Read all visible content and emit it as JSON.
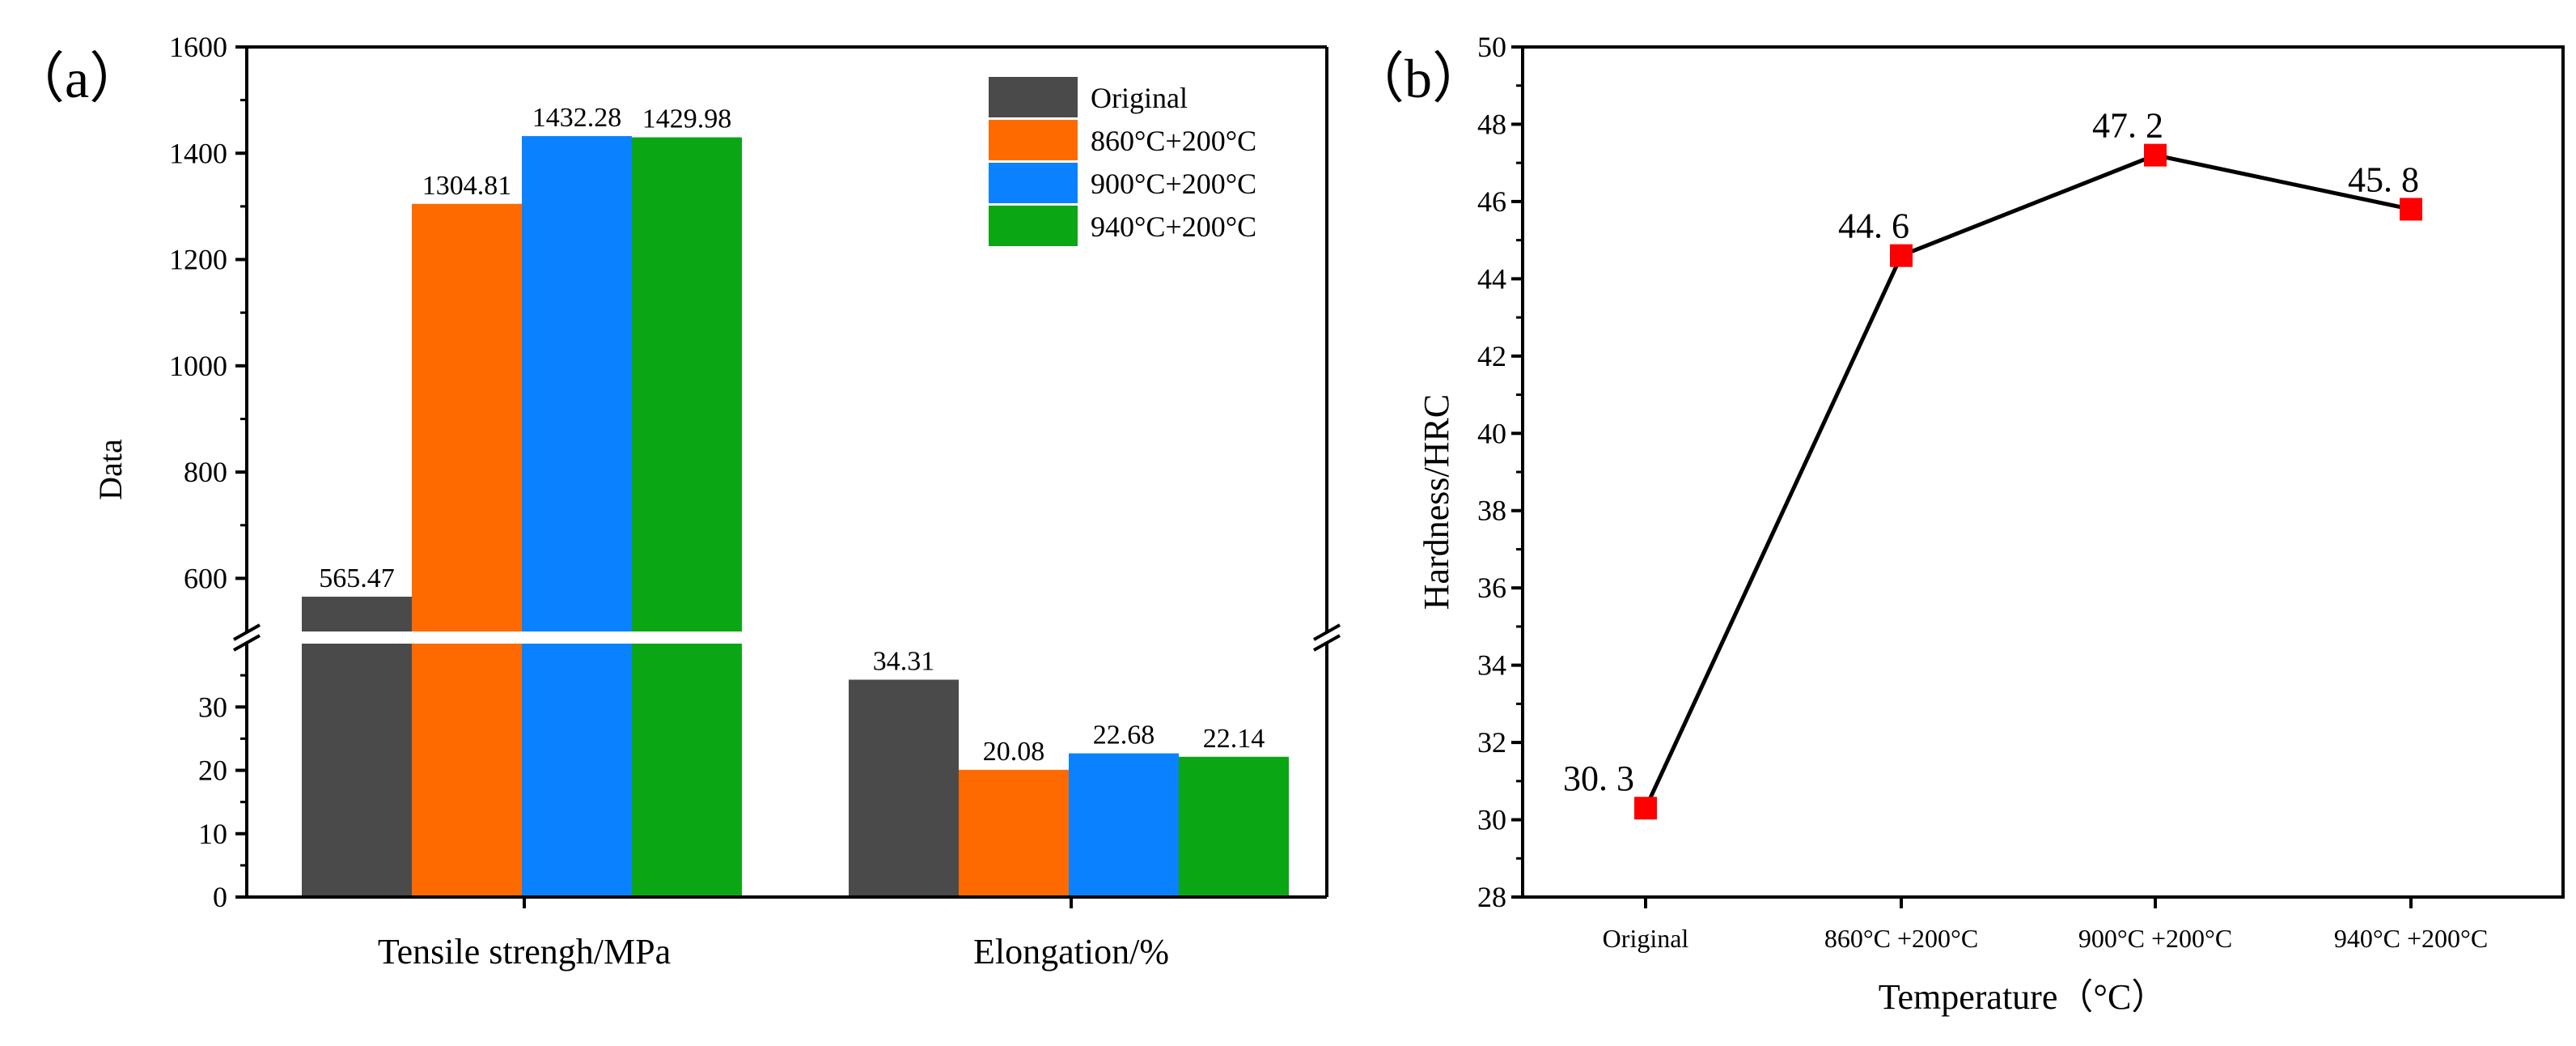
{
  "panels": {
    "a_label": "（a）",
    "b_label": "（b）"
  },
  "chart_data": [
    {
      "type": "bar",
      "panel": "a",
      "ylabel": "Data",
      "categories": [
        "Tensile strengh/MPa",
        "Elongation/%"
      ],
      "series": [
        {
          "name": "Original",
          "color": "#4a4a4a",
          "values": [
            565.47,
            34.31
          ],
          "labels": [
            "565.47",
            "34.31"
          ]
        },
        {
          "name": "860°C+200°C",
          "color": "#ff6a00",
          "values": [
            1304.81,
            20.08
          ],
          "labels": [
            "1304.81",
            "20.08"
          ]
        },
        {
          "name": "900°C+200°C",
          "color": "#0a82ff",
          "values": [
            1432.28,
            22.68
          ],
          "labels": [
            "1432.28",
            "22.68"
          ]
        },
        {
          "name": "940°C+200°C",
          "color": "#0aa614",
          "values": [
            1429.98,
            22.14
          ],
          "labels": [
            "1429.98",
            "22.14"
          ]
        }
      ],
      "axis_break": {
        "lower_range": [
          0,
          40
        ],
        "upper_range": [
          500,
          1600
        ]
      },
      "upper_ticks": [
        "600",
        "800",
        "1000",
        "1200",
        "1400",
        "1600"
      ],
      "lower_ticks": [
        "0",
        "10",
        "20",
        "30"
      ],
      "legend_position": "top-right"
    },
    {
      "type": "line",
      "panel": "b",
      "xlabel": "Temperature（°C）",
      "ylabel": "Hardness/HRC",
      "categories": [
        "Original",
        "860°C +200°C",
        "900°C +200°C",
        "940°C +200°C"
      ],
      "values": [
        30.3,
        44.6,
        47.2,
        45.8
      ],
      "labels": [
        "30. 3",
        "44. 6",
        "47. 2",
        "45. 8"
      ],
      "ylim": [
        28,
        50
      ],
      "yticks": [
        "28",
        "30",
        "32",
        "34",
        "36",
        "38",
        "40",
        "42",
        "44",
        "46",
        "48",
        "50"
      ],
      "marker_color": "#ff0000",
      "line_color": "#000000"
    }
  ]
}
